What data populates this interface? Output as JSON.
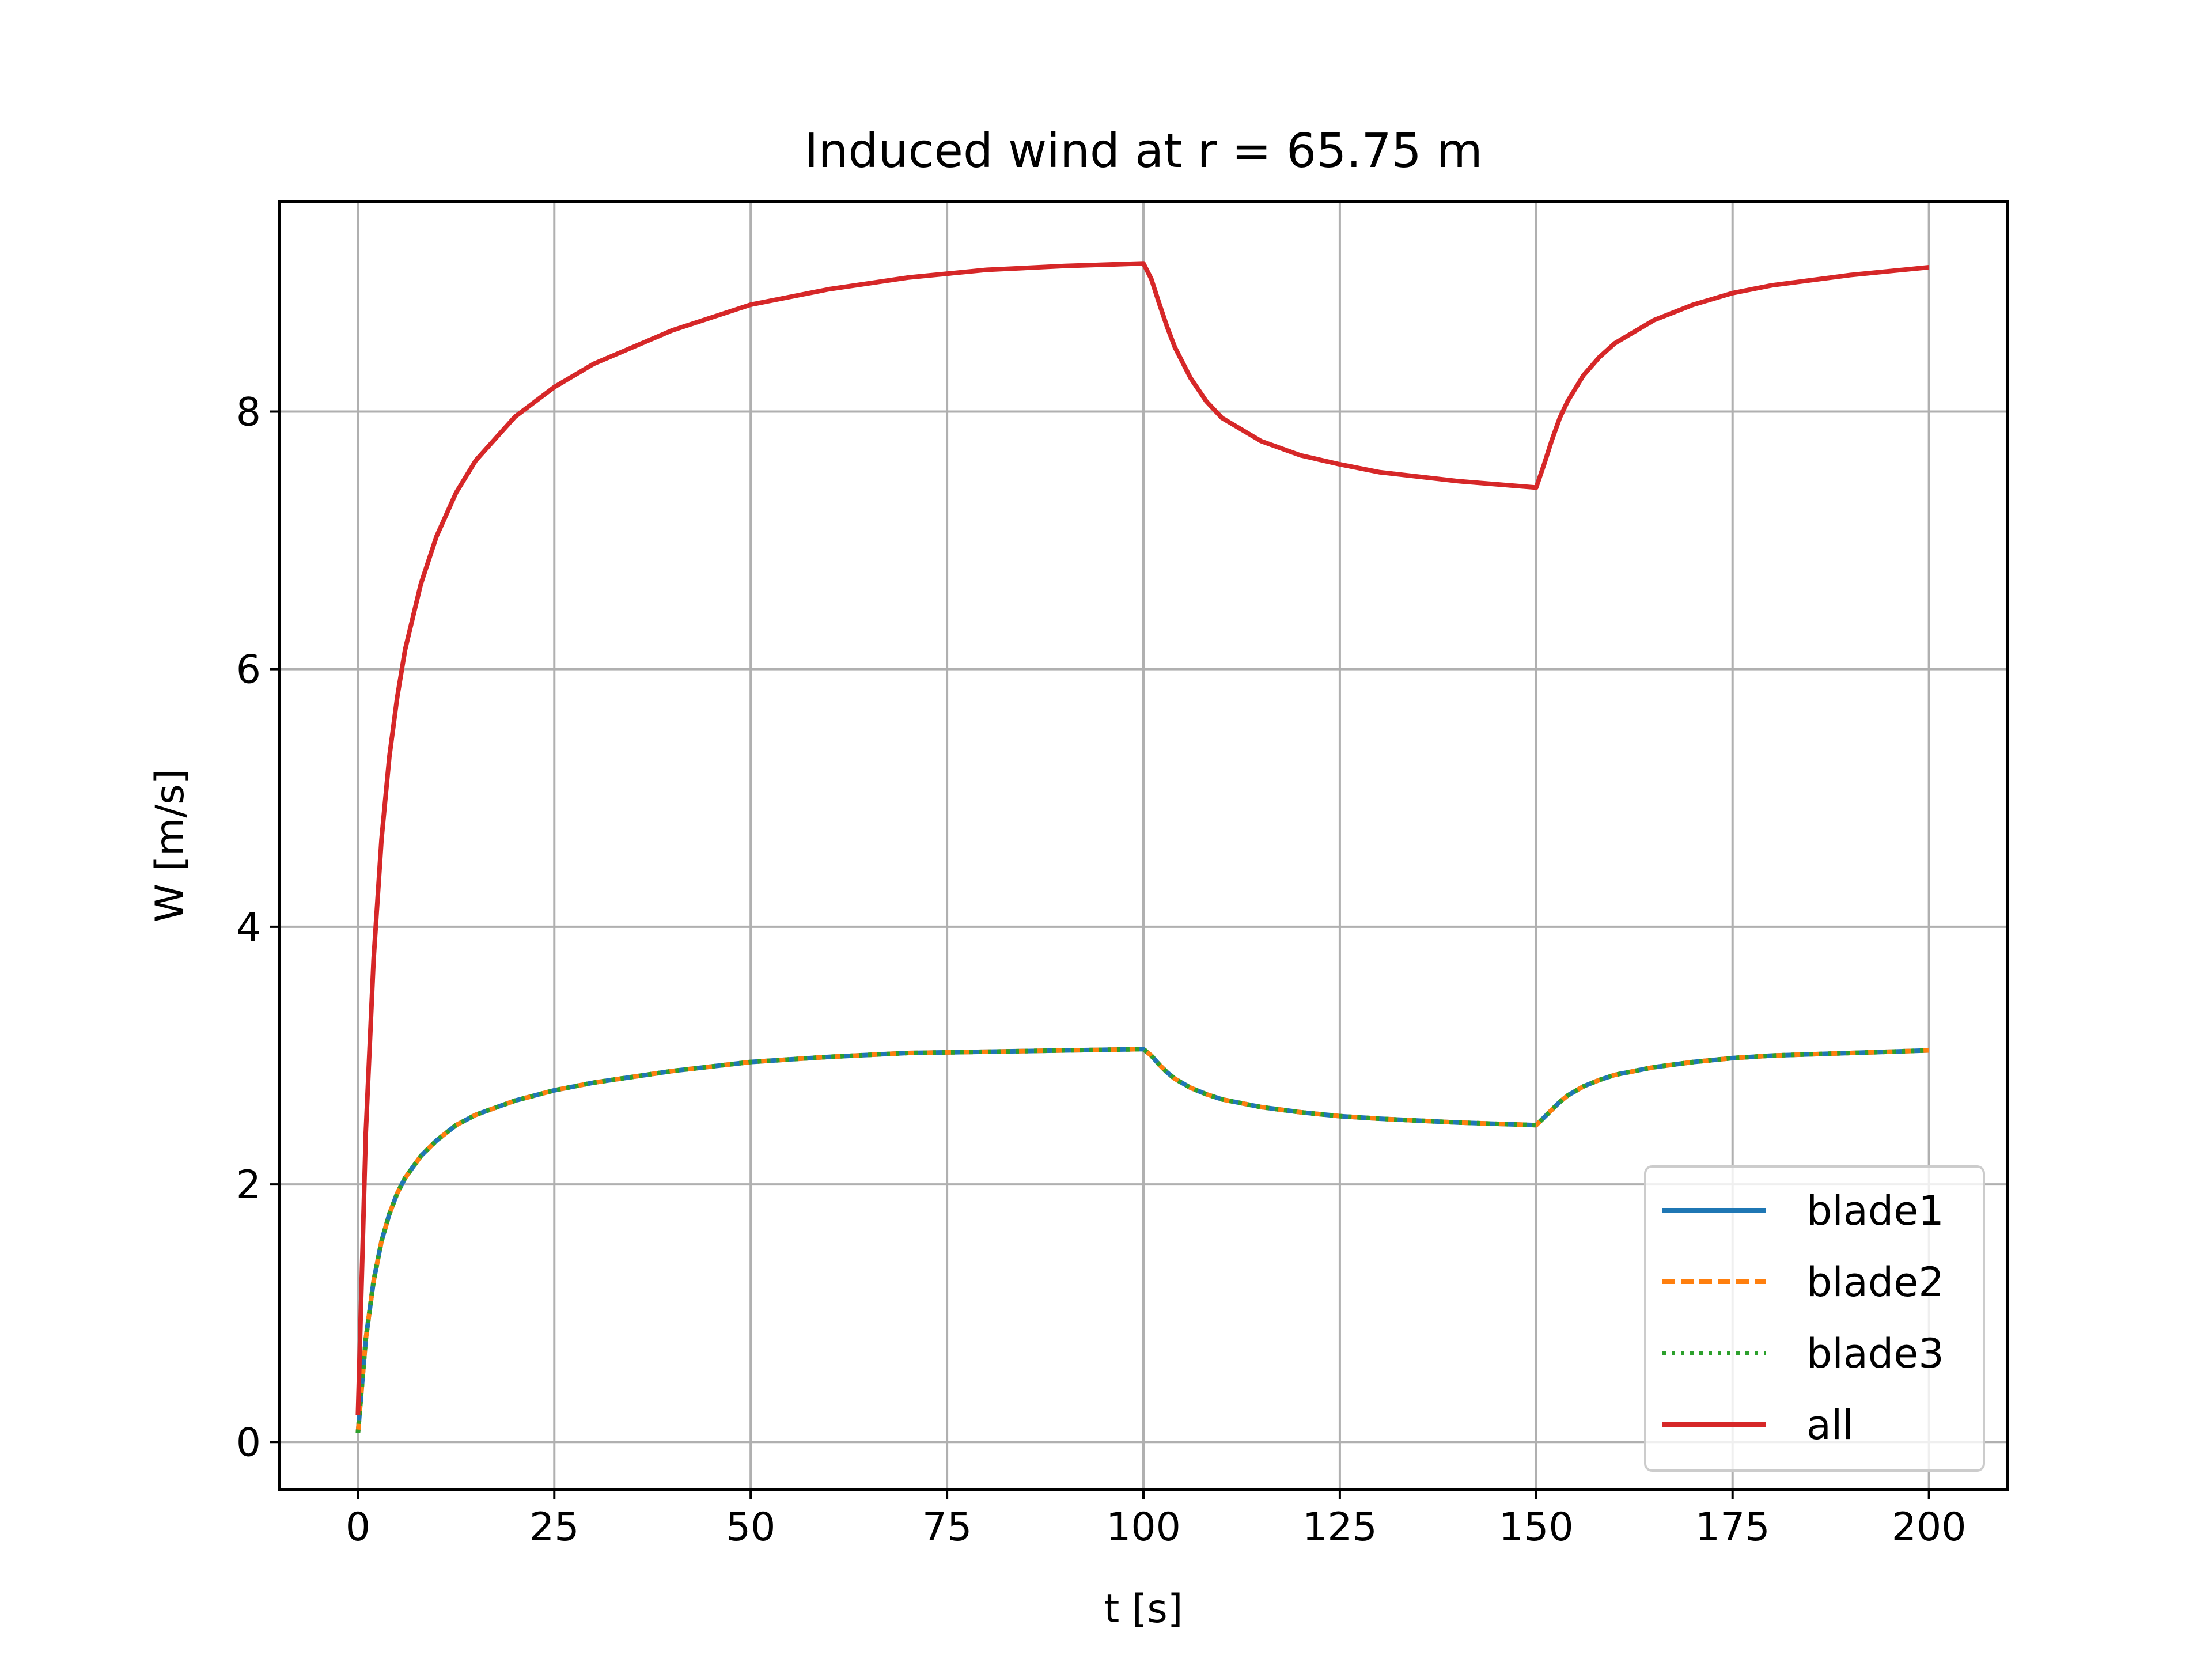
{
  "chart_data": {
    "type": "line",
    "title": "Induced wind at r = 65.75 m",
    "xlabel": "t [s]",
    "ylabel": "W [m/s]",
    "xlim": [
      -10,
      210
    ],
    "ylim": [
      -0.37,
      9.63
    ],
    "xticks": [
      0,
      25,
      50,
      75,
      100,
      125,
      150,
      175,
      200
    ],
    "yticks": [
      0,
      2,
      4,
      6,
      8
    ],
    "grid": true,
    "legend_position": "lower-right",
    "x": [
      0,
      1,
      2,
      3,
      4,
      5,
      6,
      8,
      10,
      12.5,
      15,
      20,
      25,
      30,
      40,
      50,
      60,
      70,
      80,
      90,
      100,
      101,
      102,
      103,
      104,
      106,
      108,
      110,
      115,
      120,
      125,
      130,
      140,
      150,
      151,
      152,
      153,
      154,
      156,
      158,
      160,
      165,
      170,
      175,
      180,
      190,
      200
    ],
    "series": [
      {
        "name": "blade1",
        "color": "#1f77b4",
        "style": "solid",
        "values": [
          0.07,
          0.8,
          1.25,
          1.56,
          1.77,
          1.93,
          2.05,
          2.22,
          2.34,
          2.46,
          2.54,
          2.65,
          2.73,
          2.79,
          2.88,
          2.95,
          2.99,
          3.02,
          3.03,
          3.04,
          3.05,
          3.0,
          2.93,
          2.87,
          2.82,
          2.75,
          2.7,
          2.66,
          2.6,
          2.56,
          2.53,
          2.51,
          2.48,
          2.46,
          2.52,
          2.58,
          2.64,
          2.69,
          2.76,
          2.81,
          2.85,
          2.91,
          2.95,
          2.98,
          3.0,
          3.02,
          3.04
        ]
      },
      {
        "name": "blade2",
        "color": "#ff7f0e",
        "style": "dashed",
        "values": [
          0.07,
          0.8,
          1.25,
          1.56,
          1.77,
          1.93,
          2.05,
          2.22,
          2.34,
          2.46,
          2.54,
          2.65,
          2.73,
          2.79,
          2.88,
          2.95,
          2.99,
          3.02,
          3.03,
          3.04,
          3.05,
          3.0,
          2.93,
          2.87,
          2.82,
          2.75,
          2.7,
          2.66,
          2.6,
          2.56,
          2.53,
          2.51,
          2.48,
          2.46,
          2.52,
          2.58,
          2.64,
          2.69,
          2.76,
          2.81,
          2.85,
          2.91,
          2.95,
          2.98,
          3.0,
          3.02,
          3.04
        ]
      },
      {
        "name": "blade3",
        "color": "#2ca02c",
        "style": "dotted",
        "values": [
          0.07,
          0.8,
          1.25,
          1.56,
          1.77,
          1.93,
          2.05,
          2.22,
          2.34,
          2.46,
          2.54,
          2.65,
          2.73,
          2.79,
          2.88,
          2.95,
          2.99,
          3.02,
          3.03,
          3.04,
          3.05,
          3.0,
          2.93,
          2.87,
          2.82,
          2.75,
          2.7,
          2.66,
          2.6,
          2.56,
          2.53,
          2.51,
          2.48,
          2.46,
          2.52,
          2.58,
          2.64,
          2.69,
          2.76,
          2.81,
          2.85,
          2.91,
          2.95,
          2.98,
          3.0,
          3.02,
          3.04
        ]
      },
      {
        "name": "all",
        "color": "#d62728",
        "style": "solid",
        "values": [
          0.21,
          2.4,
          3.75,
          4.68,
          5.32,
          5.78,
          6.15,
          6.66,
          7.03,
          7.37,
          7.62,
          7.96,
          8.19,
          8.37,
          8.63,
          8.83,
          8.95,
          9.04,
          9.1,
          9.13,
          9.15,
          9.03,
          8.84,
          8.66,
          8.5,
          8.26,
          8.08,
          7.95,
          7.77,
          7.66,
          7.59,
          7.53,
          7.46,
          7.41,
          7.59,
          7.78,
          7.95,
          8.08,
          8.28,
          8.42,
          8.53,
          8.71,
          8.83,
          8.92,
          8.98,
          9.06,
          9.12
        ]
      }
    ]
  }
}
